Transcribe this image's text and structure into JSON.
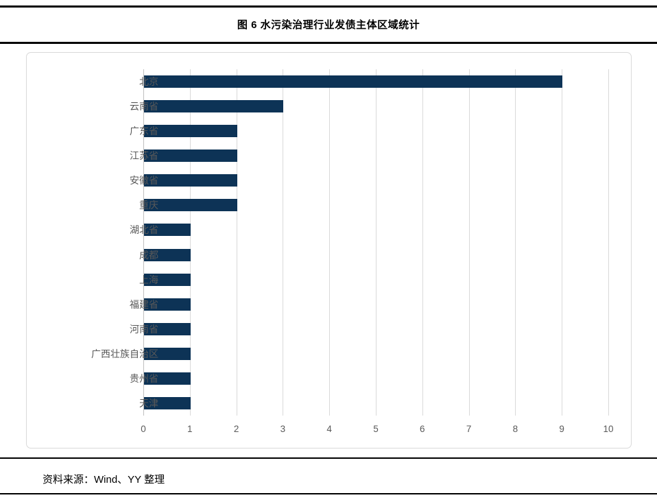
{
  "title": "图 6 水污染治理行业发债主体区域统计",
  "source_note": "资料来源：Wind、YY 整理",
  "chart_data": {
    "type": "bar",
    "orientation": "horizontal",
    "title": "图 6 水污染治理行业发债主体区域统计",
    "categories": [
      "北京",
      "云南省",
      "广东省",
      "江苏省",
      "安徽省",
      "重庆",
      "湖北省",
      "成都",
      "上海",
      "福建省",
      "河南省",
      "广西壮族自治区",
      "贵州省",
      "天津"
    ],
    "values": [
      9,
      3,
      2,
      2,
      2,
      2,
      1,
      1,
      1,
      1,
      1,
      1,
      1,
      1
    ],
    "xlabel": "",
    "ylabel": "",
    "xlim": [
      0,
      10
    ],
    "x_ticks": [
      0,
      1,
      2,
      3,
      4,
      5,
      6,
      7,
      8,
      9,
      10
    ],
    "grid": "vertical-on",
    "legend": "none",
    "bar_color": "#0d3356",
    "gridline_color": "#d9d9d9",
    "axis_line_color": "#bfbfbf",
    "tick_label_color": "#595959",
    "category_label_color": "#595959"
  }
}
